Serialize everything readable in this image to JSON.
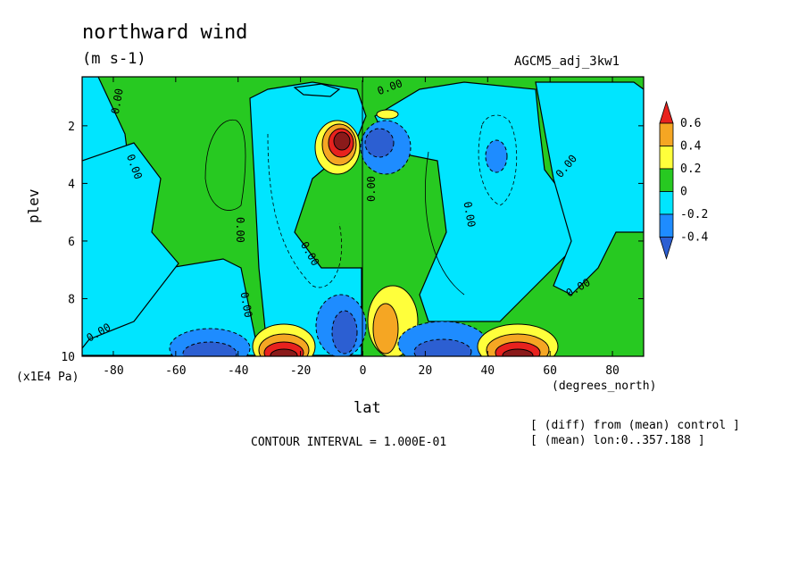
{
  "title": "northward wind",
  "units": "(m s-1)",
  "run_label": "AGCM5_adj_3kw1",
  "y_axis_label": "plev",
  "y_axis_units": "(x1E4 Pa)",
  "x_axis_label": "lat",
  "x_axis_units": "(degrees_north)",
  "contour_interval": "CONTOUR INTERVAL = 1.000E-01",
  "notes": [
    "[ (diff) from (mean) control ]",
    "[ (mean) lon:0..357.188 ]"
  ],
  "contour_labels": [
    "0.00",
    "0.00",
    "0.00",
    "0.00",
    "0.00",
    "0.00",
    "0.00",
    "0.00",
    "0.00",
    "0.00",
    "0.00"
  ],
  "chart_data": {
    "type": "heatmap",
    "title": "northward wind",
    "xlabel": "lat",
    "ylabel": "plev",
    "xlim": [
      -90,
      90
    ],
    "ylim": [
      10,
      0.3
    ],
    "x_ticks": [
      "-80",
      "-60",
      "-40",
      "-20",
      "0",
      "20",
      "40",
      "60",
      "80"
    ],
    "x_tick_values": [
      -80,
      -60,
      -40,
      -20,
      0,
      20,
      40,
      60,
      80
    ],
    "y_ticks": [
      "2",
      "4",
      "6",
      "8",
      "10"
    ],
    "y_tick_values": [
      2,
      4,
      6,
      8,
      10
    ],
    "colorbar": {
      "labels": [
        "0.6",
        "0.4",
        "0.2",
        "0",
        "-0.2",
        "-0.4"
      ],
      "label_values": [
        0.6,
        0.4,
        0.2,
        0,
        -0.2,
        -0.4
      ],
      "colors": [
        "#e8221e",
        "#f5a623",
        "#ffff3b",
        "#27c921",
        "#00e5ff",
        "#1e8cff",
        "#2c5fd2"
      ]
    },
    "features": [
      {
        "lat": -5,
        "plev": 2.6,
        "value": 0.9
      },
      {
        "lat": 5,
        "plev": 2.6,
        "value": -0.6
      },
      {
        "lat": 6,
        "plev": 1.4,
        "value": 0.3
      },
      {
        "lat": -25,
        "plev": 9.6,
        "value": 0.9
      },
      {
        "lat": -45,
        "plev": 9.7,
        "value": -0.6
      },
      {
        "lat": -5,
        "plev": 9.0,
        "value": -0.5
      },
      {
        "lat": 6,
        "plev": 8.7,
        "value": 0.5
      },
      {
        "lat": 25,
        "plev": 9.7,
        "value": -0.6
      },
      {
        "lat": 45,
        "plev": 9.7,
        "value": 0.8
      },
      {
        "lat": 40,
        "plev": 2.9,
        "value": -0.3
      }
    ]
  }
}
